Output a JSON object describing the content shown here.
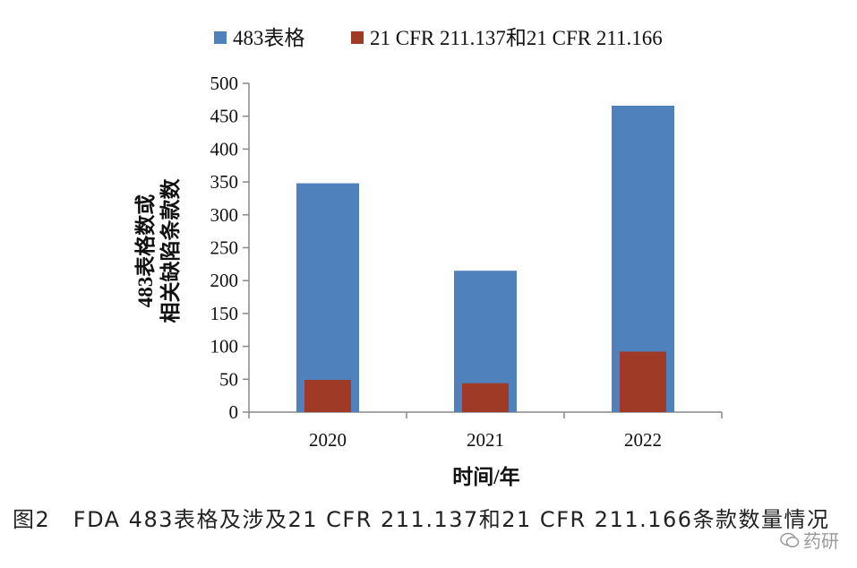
{
  "chart_data": {
    "type": "bar",
    "categories": [
      "2020",
      "2021",
      "2022"
    ],
    "series": [
      {
        "name": "483表格",
        "color": "#4F81BD",
        "values": [
          348,
          215,
          466
        ]
      },
      {
        "name": "21 CFR 211.137和21 CFR 211.166",
        "color": "#9E3A26",
        "values": [
          49,
          44,
          92
        ]
      }
    ],
    "ylabel_line1": "483表格数或",
    "ylabel_line2": "相关缺陷条款数",
    "xlabel": "时间/年",
    "ylim": [
      0,
      500
    ],
    "yticks": [
      0,
      50,
      100,
      150,
      200,
      250,
      300,
      350,
      400,
      450,
      500
    ],
    "grid": false,
    "legend_position": "top"
  },
  "caption": "图2　FDA 483表格及涉及21 CFR 211.137和21 CFR 211.166条款数量情况",
  "watermark": {
    "text": "药研",
    "icon": "wechat-icon"
  }
}
